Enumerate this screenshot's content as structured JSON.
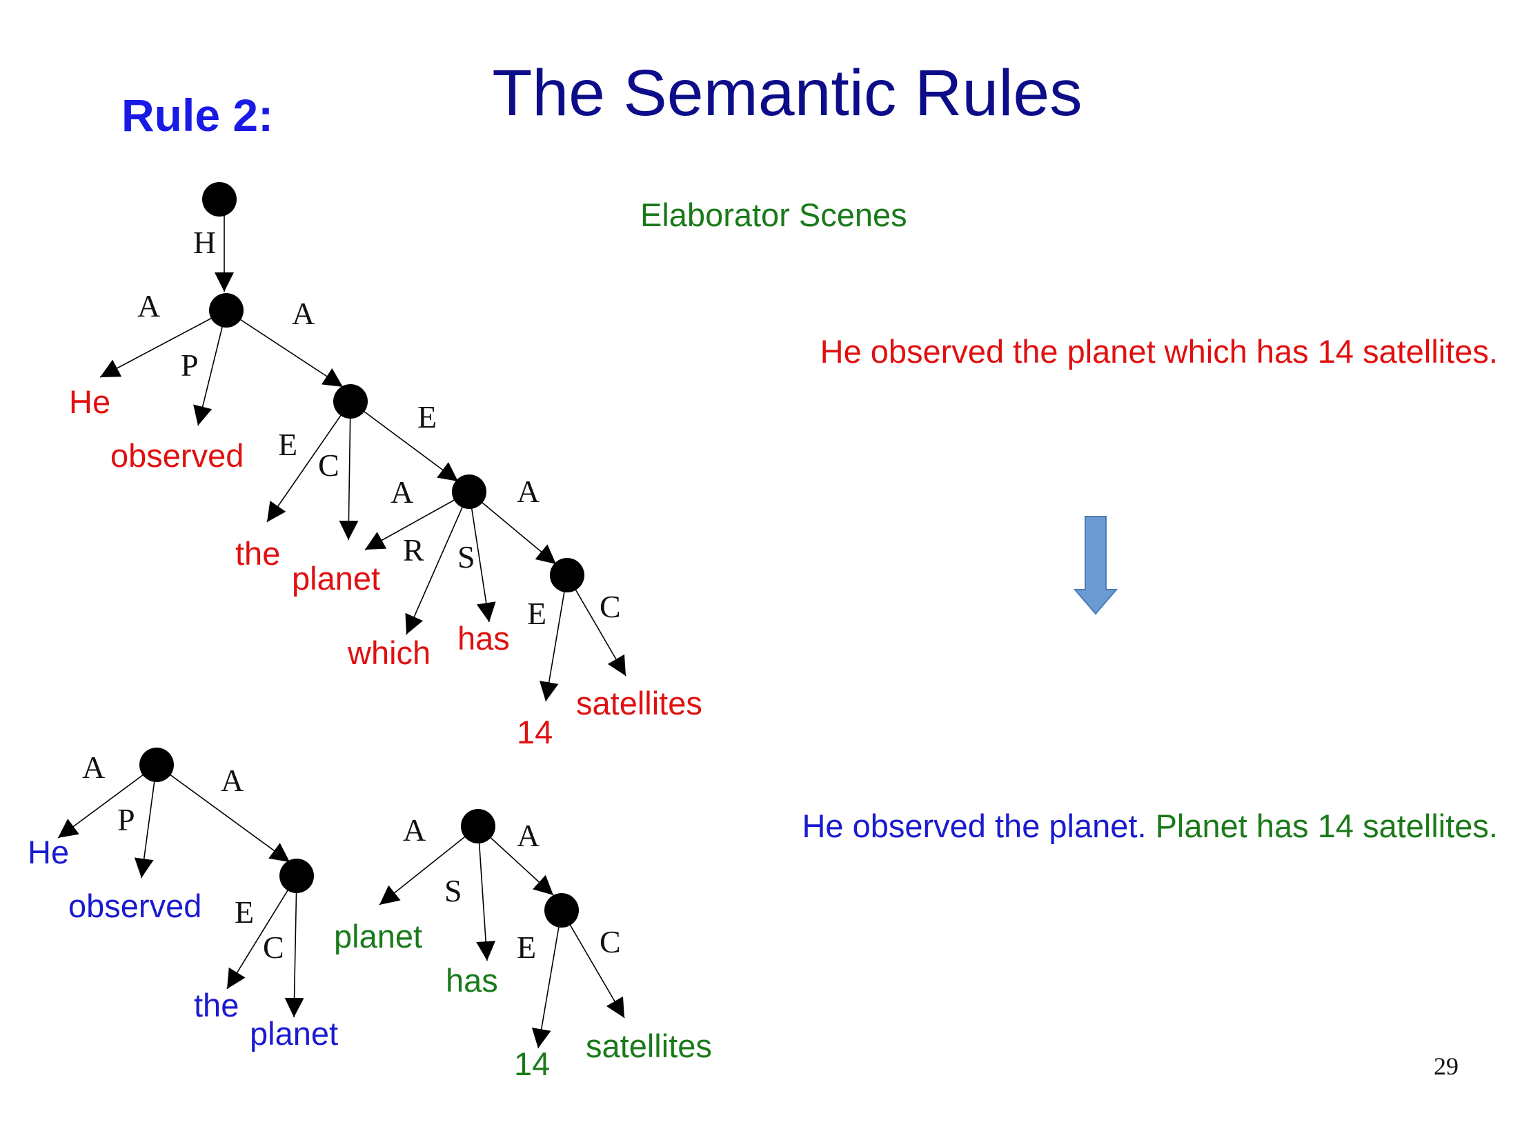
{
  "slide": {
    "title": "The Semantic Rules",
    "rule_label": "Rule 2:",
    "subtitle": "Elaborator Scenes",
    "sentence_before": "He observed the planet which has 14 satellites.",
    "sentence_after_part1": "He observed the planet.",
    "sentence_after_part2": "Planet has 14 satellites.",
    "page_number": "29"
  },
  "colors": {
    "title": "#0d0d8a",
    "rule": "#1a1ae6",
    "red": "#e01010",
    "blue": "#1a1ad0",
    "green": "#1a7a1a",
    "arrow": "#6b9bd2"
  },
  "tree_top": {
    "edge_labels": [
      "H",
      "A",
      "A",
      "P",
      "E",
      "E",
      "C",
      "A",
      "A",
      "R",
      "S",
      "E",
      "C"
    ],
    "words": [
      "He",
      "observed",
      "the",
      "planet",
      "which",
      "has",
      "14",
      "satellites"
    ]
  },
  "tree_bottom_left": {
    "edge_labels": [
      "A",
      "A",
      "P",
      "E",
      "C"
    ],
    "words": [
      "He",
      "observed",
      "the",
      "planet"
    ]
  },
  "tree_bottom_right": {
    "edge_labels": [
      "A",
      "A",
      "S",
      "E",
      "C"
    ],
    "words": [
      "planet",
      "has",
      "14",
      "satellites"
    ]
  },
  "icons": [
    "down-arrow-icon"
  ]
}
